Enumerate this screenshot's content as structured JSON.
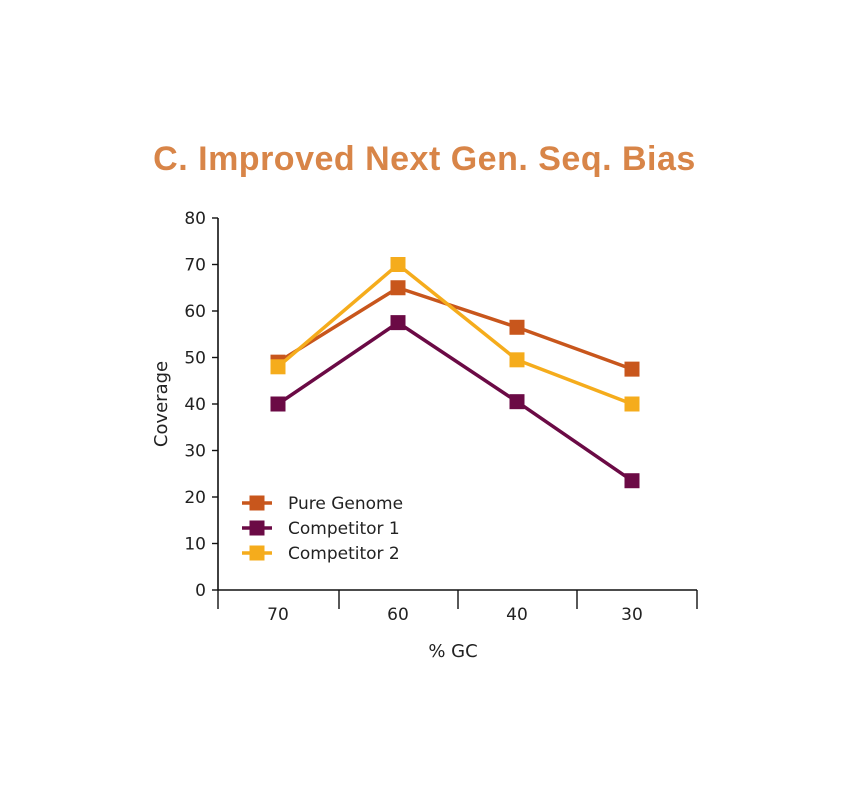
{
  "chart_data": {
    "type": "line",
    "title": "C. Improved Next Gen. Seq. Bias",
    "xlabel": "% GC",
    "ylabel": "Coverage",
    "categories": [
      "70",
      "60",
      "40",
      "30"
    ],
    "ylim": [
      0,
      80
    ],
    "yticks": [
      0,
      10,
      20,
      30,
      40,
      50,
      60,
      70,
      80
    ],
    "grid": false,
    "legend_position": "bottom-left",
    "series": [
      {
        "name": "Pure Genome",
        "color": "#c8561c",
        "values": [
          49,
          65,
          56.5,
          47.5
        ]
      },
      {
        "name": "Competitor 1",
        "color": "#6b0a45",
        "values": [
          40,
          57.5,
          40.5,
          23.5
        ]
      },
      {
        "name": "Competitor 2",
        "color": "#f5ac1c",
        "values": [
          48,
          70,
          49.5,
          40
        ]
      }
    ],
    "title_color": "#d88548"
  }
}
